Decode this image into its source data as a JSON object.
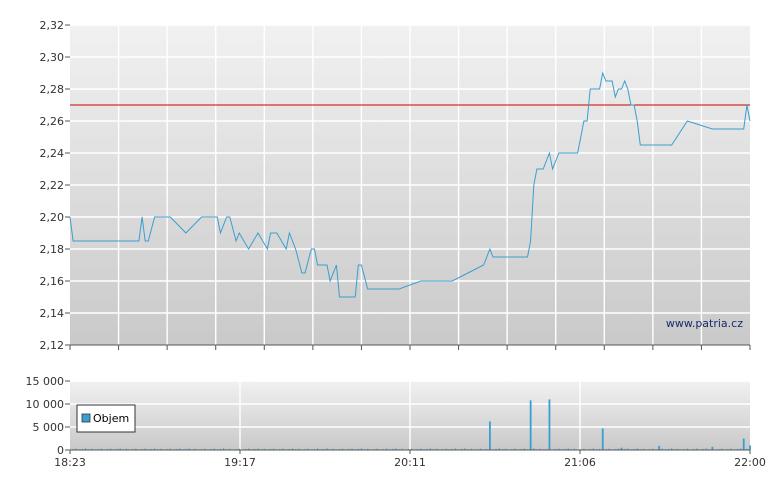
{
  "price_chart": {
    "chart_data": {
      "type": "line",
      "ylim": [
        2.12,
        2.32
      ],
      "yticks": [
        "2,12",
        "2,14",
        "2,16",
        "2,18",
        "2,20",
        "2,22",
        "2,24",
        "2,26",
        "2,28",
        "2,30",
        "2,32"
      ],
      "reference_line": {
        "value": 2.27,
        "color": "#cc0000"
      },
      "series": [
        {
          "color": "#3a9fd0",
          "x": [
            "18:23",
            "18:24",
            "18:45",
            "18:46",
            "18:47",
            "18:48",
            "18:50",
            "18:55",
            "19:00",
            "19:05",
            "19:07",
            "19:08",
            "19:10",
            "19:11",
            "19:13",
            "19:14",
            "19:16",
            "19:17",
            "19:20",
            "19:23",
            "19:26",
            "19:27",
            "19:29",
            "19:32",
            "19:33",
            "19:35",
            "19:37",
            "19:38",
            "19:40",
            "19:41",
            "19:42",
            "19:43",
            "19:45",
            "19:46",
            "19:48",
            "19:49",
            "19:50",
            "19:52",
            "19:54",
            "19:55",
            "19:56",
            "19:58",
            "19:59",
            "20:01",
            "20:03",
            "20:04",
            "20:06",
            "20:07",
            "20:08",
            "20:15",
            "20:25",
            "20:35",
            "20:37",
            "20:38",
            "20:39",
            "20:40",
            "20:48",
            "20:49",
            "20:50",
            "20:51",
            "20:52",
            "20:53",
            "20:54",
            "20:56",
            "20:57",
            "20:59",
            "21:00",
            "21:02",
            "21:04",
            "21:05",
            "21:06",
            "21:07",
            "21:08",
            "21:09",
            "21:10",
            "21:12",
            "21:13",
            "21:14",
            "21:15",
            "21:16",
            "21:17",
            "21:18",
            "21:19",
            "21:20",
            "21:21",
            "21:22",
            "21:23",
            "21:24",
            "21:25",
            "21:27",
            "21:35",
            "21:40",
            "21:48",
            "21:50",
            "21:58",
            "21:59",
            "22:00"
          ],
          "values": [
            2.2,
            2.185,
            2.185,
            2.2,
            2.185,
            2.185,
            2.2,
            2.2,
            2.19,
            2.2,
            2.2,
            2.2,
            2.2,
            2.19,
            2.2,
            2.2,
            2.185,
            2.19,
            2.18,
            2.19,
            2.18,
            2.19,
            2.19,
            2.18,
            2.19,
            2.18,
            2.165,
            2.165,
            2.18,
            2.18,
            2.17,
            2.17,
            2.17,
            2.16,
            2.17,
            2.15,
            2.15,
            2.15,
            2.15,
            2.17,
            2.17,
            2.155,
            2.155,
            2.155,
            2.155,
            2.155,
            2.155,
            2.155,
            2.155,
            2.16,
            2.16,
            2.17,
            2.18,
            2.175,
            2.175,
            2.175,
            2.175,
            2.175,
            2.185,
            2.22,
            2.23,
            2.23,
            2.23,
            2.24,
            2.23,
            2.24,
            2.24,
            2.24,
            2.24,
            2.24,
            2.25,
            2.26,
            2.26,
            2.28,
            2.28,
            2.28,
            2.29,
            2.285,
            2.285,
            2.285,
            2.275,
            2.28,
            2.28,
            2.285,
            2.28,
            2.27,
            2.27,
            2.26,
            2.245,
            2.245,
            2.245,
            2.26,
            2.255,
            2.255,
            2.255,
            2.27,
            2.26
          ]
        }
      ]
    }
  },
  "volume_chart": {
    "chart_data": {
      "type": "bar",
      "ylim": [
        0,
        15000
      ],
      "yticks": [
        "0",
        "5 000",
        "10 000",
        "15 000"
      ],
      "xticks": [
        "18:23",
        "19:17",
        "20:11",
        "21:06",
        "22:00"
      ],
      "bar_color": "#3a9fd0",
      "legend": {
        "label": "Objem",
        "position": "left"
      },
      "x": [
        "20:37",
        "20:50",
        "20:56",
        "21:13",
        "21:19",
        "21:31",
        "21:48",
        "21:58",
        "22:00"
      ],
      "values": [
        6200,
        10800,
        11000,
        4700,
        500,
        900,
        700,
        2500,
        1000
      ],
      "baseline_volume": 250
    }
  },
  "watermark": "www.patria.cz"
}
